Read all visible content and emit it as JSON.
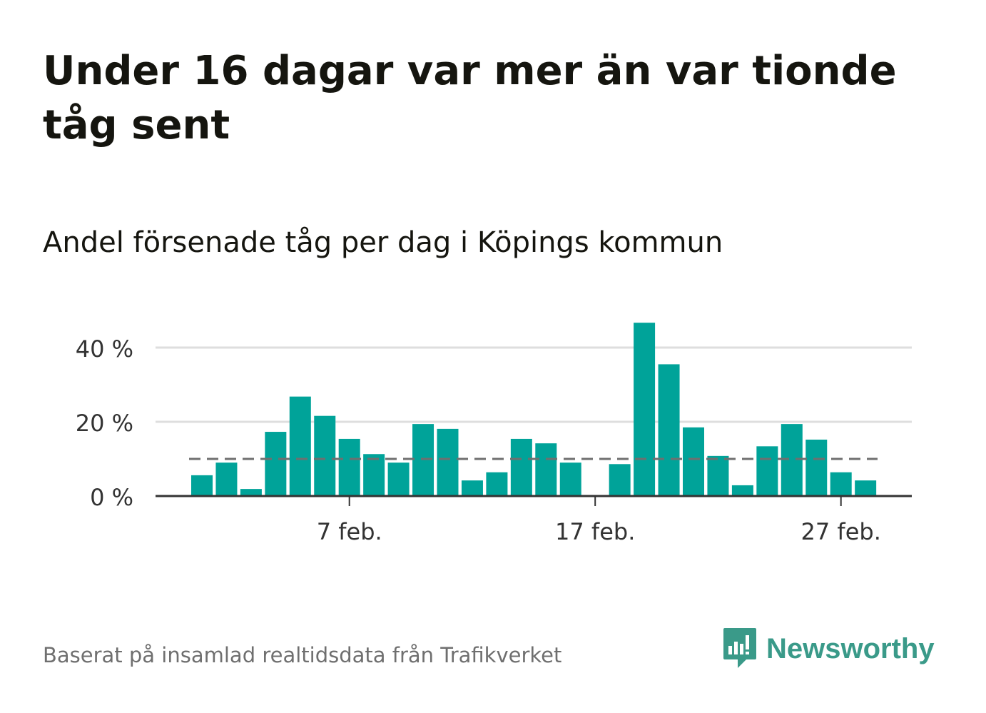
{
  "title": "Under 16 dagar var mer än var tionde tåg sent",
  "subtitle": "Andel försenade tåg per dag i Köpings kommun",
  "footer": "Baserat på insamlad realtidsdata från Trafikverket",
  "brand": {
    "name": "Newsworthy",
    "icon": "newsworthy-logo-icon"
  },
  "colors": {
    "bar": "#00a399",
    "reference_line": "#6f6f6f",
    "grid": "#dedede",
    "axis": "#333333",
    "text": "#15150f",
    "tick_text": "#333333",
    "brand": "#3a9a89"
  },
  "chart_data": {
    "type": "bar",
    "x": [
      1,
      2,
      3,
      4,
      5,
      6,
      7,
      8,
      9,
      10,
      11,
      12,
      13,
      14,
      15,
      16,
      17,
      18,
      19,
      20,
      21,
      22,
      23,
      24,
      25,
      26,
      27,
      28
    ],
    "values": [
      5.6,
      9.0,
      1.9,
      17.3,
      26.8,
      21.6,
      15.4,
      11.3,
      9.0,
      19.4,
      18.1,
      4.2,
      6.4,
      15.4,
      14.2,
      9.0,
      0,
      8.6,
      46.7,
      35.5,
      18.5,
      10.8,
      2.9,
      13.4,
      19.4,
      15.2,
      6.4,
      4.2
    ],
    "unit": "%",
    "reference_line": 10,
    "ylim": [
      0,
      50
    ],
    "yticks": [
      0,
      20,
      40
    ],
    "ytick_labels": [
      "0 %",
      "20 %",
      "40 %"
    ],
    "xticks": [
      7,
      17,
      27
    ],
    "xtick_labels": [
      "7 feb.",
      "17 feb.",
      "27 feb."
    ],
    "grid": true
  }
}
